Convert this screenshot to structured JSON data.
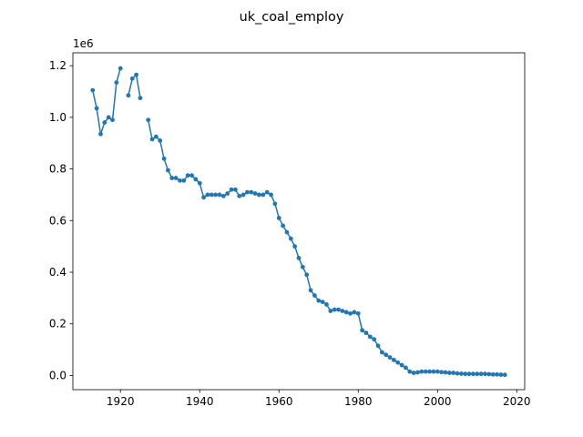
{
  "chart_data": {
    "type": "line",
    "title": "uk_coal_employ",
    "xlabel": "",
    "ylabel": "",
    "y_offset_label": "1e6",
    "xlim": [
      1908,
      2022
    ],
    "ylim": [
      -55000,
      1250000
    ],
    "x_ticks": [
      1920,
      1940,
      1960,
      1980,
      2000,
      2020
    ],
    "x_tick_labels": [
      "1920",
      "1940",
      "1960",
      "1980",
      "2000",
      "2020"
    ],
    "y_ticks": [
      0,
      200000,
      400000,
      600000,
      800000,
      1000000,
      1200000
    ],
    "y_tick_labels": [
      "0.0",
      "0.2",
      "0.4",
      "0.6",
      "0.8",
      "1.0",
      "1.2"
    ],
    "grid": false,
    "legend": "none",
    "series": [
      {
        "color": "#1f77b4",
        "marker": "circle",
        "x": [
          1913,
          1914,
          1915,
          1916,
          1917,
          1918,
          1919,
          1920,
          1921,
          1922,
          1923,
          1924,
          1925,
          1926,
          1927,
          1928,
          1929,
          1930,
          1931,
          1932,
          1933,
          1934,
          1935,
          1936,
          1937,
          1938,
          1939,
          1940,
          1941,
          1942,
          1943,
          1944,
          1945,
          1946,
          1947,
          1948,
          1949,
          1950,
          1951,
          1952,
          1953,
          1954,
          1955,
          1956,
          1957,
          1958,
          1959,
          1960,
          1961,
          1962,
          1963,
          1964,
          1965,
          1966,
          1967,
          1968,
          1969,
          1970,
          1971,
          1972,
          1973,
          1974,
          1975,
          1976,
          1977,
          1978,
          1979,
          1980,
          1981,
          1982,
          1983,
          1984,
          1985,
          1986,
          1987,
          1988,
          1989,
          1990,
          1991,
          1992,
          1993,
          1994,
          1995,
          1996,
          1997,
          1998,
          1999,
          2000,
          2001,
          2002,
          2003,
          2004,
          2005,
          2006,
          2007,
          2008,
          2009,
          2010,
          2011,
          2012,
          2013,
          2014,
          2015,
          2016,
          2017
        ],
        "y": [
          1105000,
          1035000,
          935000,
          980000,
          1000000,
          990000,
          1135000,
          1190000,
          null,
          1085000,
          1150000,
          1165000,
          1075000,
          null,
          990000,
          915000,
          925000,
          910000,
          840000,
          795000,
          765000,
          765000,
          755000,
          755000,
          775000,
          775000,
          760000,
          745000,
          690000,
          700000,
          700000,
          700000,
          700000,
          695000,
          705000,
          720000,
          720000,
          695000,
          700000,
          710000,
          710000,
          705000,
          700000,
          700000,
          710000,
          700000,
          665000,
          610000,
          580000,
          555000,
          530000,
          500000,
          455000,
          420000,
          390000,
          330000,
          310000,
          290000,
          285000,
          275000,
          250000,
          255000,
          255000,
          250000,
          245000,
          240000,
          245000,
          240000,
          175000,
          165000,
          150000,
          140000,
          115000,
          90000,
          80000,
          70000,
          60000,
          50000,
          40000,
          30000,
          15000,
          10000,
          12000,
          15000,
          15000,
          15000,
          15000,
          15000,
          13000,
          12000,
          10000,
          10000,
          8000,
          7000,
          6000,
          6000,
          6000,
          6000,
          6000,
          6000,
          5000,
          4000,
          4000,
          3000,
          2500
        ]
      }
    ]
  }
}
